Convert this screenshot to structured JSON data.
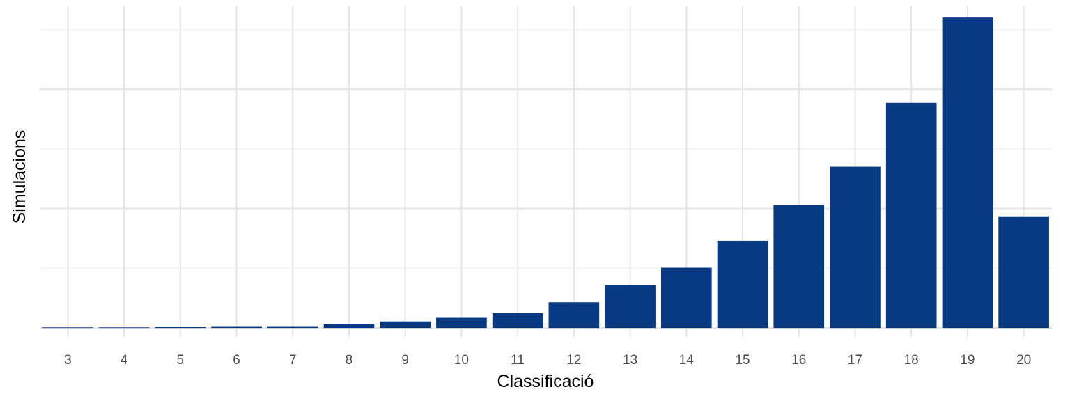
{
  "chart_data": {
    "type": "bar",
    "title": "",
    "xlabel": "Classificació",
    "ylabel": "Simulacions",
    "categories": [
      "3",
      "4",
      "5",
      "6",
      "7",
      "8",
      "9",
      "10",
      "11",
      "12",
      "13",
      "14",
      "15",
      "16",
      "17",
      "18",
      "19",
      "20"
    ],
    "values": [
      1,
      1,
      2,
      3,
      3,
      6,
      11,
      17,
      25,
      43,
      72,
      101,
      146,
      206,
      270,
      377,
      520,
      187
    ],
    "ylim": [
      -15,
      540
    ],
    "y_tick_labels_shown": false,
    "grid": true,
    "legend": "none",
    "colors": {
      "bar": "#083A84",
      "grid_major": "#E5E5E5",
      "grid_minor": "#F0F0F0",
      "tick_text": "#4D4D4D"
    }
  }
}
